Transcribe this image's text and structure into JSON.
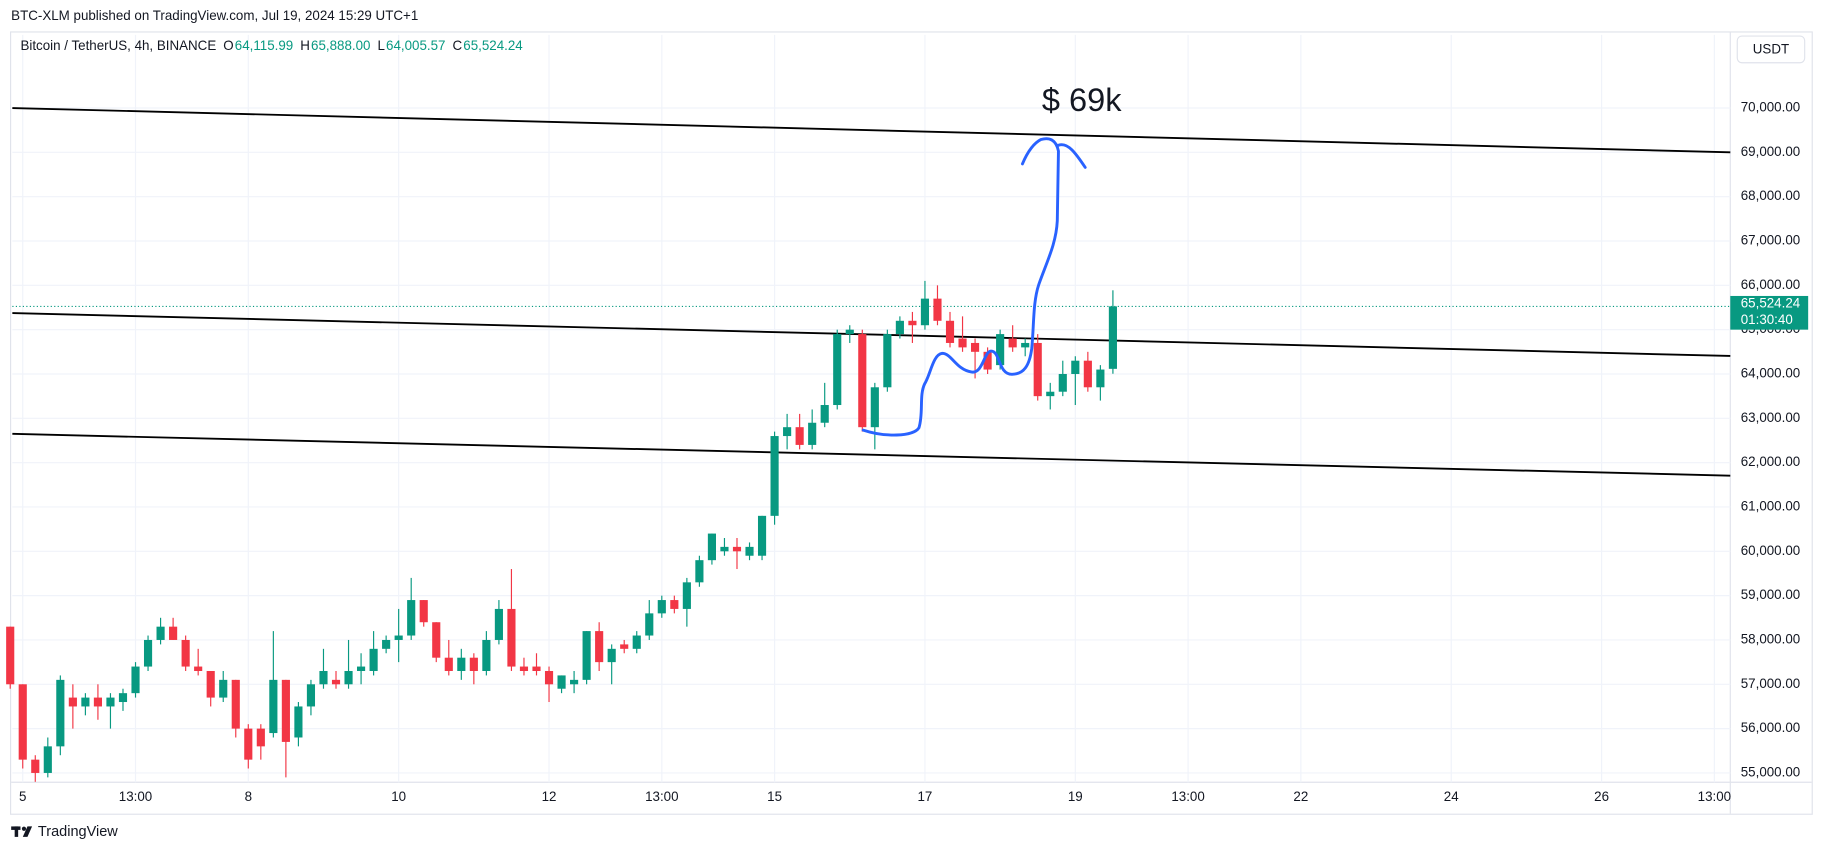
{
  "header": {
    "publisher": "BTC-XLM published on TradingView.com, Jul 19, 2024 15:29 UTC+1",
    "footer": "TradingView"
  },
  "chart_data": {
    "type": "candlestick",
    "title": "Bitcoin / TetherUS, 4h, BINANCE",
    "ohlc_legend": [
      {
        "label": "O",
        "value": "64,115.99"
      },
      {
        "label": "H",
        "value": "65,888.00"
      },
      {
        "label": "L",
        "value": "64,005.57"
      },
      {
        "label": "C",
        "value": "65,524.24"
      }
    ],
    "currency": "USDT",
    "x": [
      -1,
      0,
      1,
      2,
      3,
      4,
      5,
      6,
      7,
      8,
      9,
      10,
      11,
      12,
      13,
      14,
      15,
      16,
      17,
      18,
      19,
      20,
      21,
      22,
      23,
      24,
      25,
      26,
      27,
      28,
      29,
      30,
      31,
      32,
      33,
      34,
      35,
      36,
      37,
      38,
      39,
      40,
      41,
      42,
      43,
      44,
      45,
      46,
      47,
      48,
      49,
      50,
      51,
      52,
      53,
      54,
      55,
      56,
      57,
      58,
      59,
      60,
      61,
      62,
      63,
      64,
      65,
      66,
      67,
      68,
      69,
      70,
      71,
      72,
      73,
      74,
      75,
      76,
      77,
      78,
      79,
      80,
      81,
      82,
      83,
      84,
      85,
      86,
      87
    ],
    "open": [
      58300,
      57000,
      55300,
      55000,
      55600,
      56700,
      56500,
      56700,
      56500,
      56600,
      56800,
      57400,
      58000,
      58300,
      58000,
      57400,
      57300,
      56700,
      57100,
      56000,
      56000,
      55900,
      57100,
      55800,
      56500,
      57000,
      57100,
      57000,
      57300,
      57300,
      57800,
      58000,
      58100,
      58900,
      58400,
      57600,
      57300,
      57600,
      57300,
      58000,
      58700,
      57400,
      57400,
      57300,
      56900,
      57000,
      57100,
      58200,
      57500,
      57900,
      57800,
      58100,
      58600,
      58900,
      58700,
      59300,
      59800,
      60000,
      60100,
      59900,
      59900,
      60800,
      62600,
      62800,
      62400,
      62900,
      63300,
      64900,
      64900,
      62800,
      63700,
      64900,
      65200,
      65100,
      65700,
      65200,
      64800,
      64700,
      64500,
      64200,
      64800,
      64600,
      64700,
      63500,
      63600,
      64000,
      64300,
      63700,
      64115.99
    ],
    "high": [
      58300,
      57000,
      55400,
      55800,
      57200,
      57000,
      56800,
      57000,
      56800,
      56900,
      57500,
      58100,
      58500,
      58500,
      58100,
      57800,
      57300,
      57300,
      57100,
      56100,
      56100,
      58200,
      57100,
      56600,
      57100,
      57800,
      57300,
      58000,
      57700,
      58200,
      58100,
      58700,
      59400,
      58900,
      58400,
      58000,
      57800,
      57700,
      58200,
      58900,
      59600,
      57600,
      57700,
      57400,
      57200,
      57300,
      58200,
      58400,
      57900,
      58000,
      58200,
      58900,
      59000,
      59000,
      59400,
      59900,
      60400,
      60300,
      60300,
      60200,
      60800,
      62700,
      63100,
      63100,
      63200,
      63800,
      65000,
      65100,
      65000,
      63800,
      65000,
      65300,
      65400,
      66100,
      66000,
      65400,
      65300,
      64800,
      64600,
      65000,
      65100,
      64800,
      64900,
      63800,
      64300,
      64400,
      64500,
      64200,
      65888
    ],
    "low": [
      56900,
      55100,
      54800,
      54900,
      55400,
      56000,
      56300,
      56200,
      56000,
      56400,
      56700,
      57300,
      57900,
      58000,
      57300,
      57200,
      56500,
      56600,
      55800,
      55100,
      55300,
      55800,
      54900,
      55600,
      56300,
      56900,
      56900,
      56900,
      57000,
      57200,
      57700,
      57500,
      58000,
      58300,
      57500,
      57200,
      57100,
      57000,
      57200,
      57900,
      57300,
      57200,
      57200,
      56600,
      56800,
      56800,
      57000,
      57300,
      57000,
      57700,
      57700,
      58000,
      58500,
      58600,
      58300,
      59200,
      59700,
      59900,
      59600,
      59800,
      59800,
      60600,
      62300,
      62300,
      62300,
      62800,
      63200,
      64700,
      62700,
      62300,
      63600,
      64800,
      64700,
      65000,
      65100,
      64600,
      64500,
      63900,
      64000,
      64100,
      64500,
      64400,
      63400,
      63200,
      63500,
      63300,
      63600,
      63400,
      64005.57
    ],
    "close": [
      57000,
      55300,
      55000,
      55600,
      57100,
      56500,
      56700,
      56500,
      56700,
      56800,
      57400,
      58000,
      58300,
      58000,
      57400,
      57300,
      56700,
      57100,
      56000,
      55300,
      55600,
      57100,
      55700,
      56500,
      57000,
      57300,
      57000,
      57300,
      57400,
      57800,
      58000,
      58100,
      58900,
      58400,
      57600,
      57300,
      57600,
      57300,
      58000,
      58700,
      57400,
      57300,
      57300,
      57000,
      57200,
      57100,
      58200,
      57500,
      57800,
      57800,
      58100,
      58600,
      58900,
      58700,
      59300,
      59800,
      60400,
      60100,
      60000,
      60100,
      60800,
      62600,
      62800,
      62400,
      62900,
      63300,
      64900,
      65000,
      62800,
      63700,
      64900,
      65200,
      65100,
      65700,
      65200,
      64700,
      64600,
      64500,
      64100,
      64900,
      64600,
      64700,
      63500,
      63600,
      64000,
      64300,
      63700,
      64100,
      65524.24
    ],
    "up_color": "#089981",
    "down_color": "#f23645",
    "xlim": [
      -0.83,
      136.27
    ],
    "xticks": [
      {
        "value": 0,
        "label": "5"
      },
      {
        "value": 9,
        "label": "13:00"
      },
      {
        "value": 18,
        "label": "8"
      },
      {
        "value": 30,
        "label": "10"
      },
      {
        "value": 42,
        "label": "12"
      },
      {
        "value": 51,
        "label": "13:00"
      },
      {
        "value": 60,
        "label": "15"
      },
      {
        "value": 72,
        "label": "17"
      },
      {
        "value": 84,
        "label": "19"
      },
      {
        "value": 93,
        "label": "13:00"
      },
      {
        "value": 102,
        "label": "22"
      },
      {
        "value": 114,
        "label": "24"
      },
      {
        "value": 126,
        "label": "26"
      },
      {
        "value": 135,
        "label": "13:00"
      }
    ],
    "ylim": [
      54790,
      71650
    ],
    "yticks": [
      {
        "value": 55000,
        "label": "55,000.00"
      },
      {
        "value": 56000,
        "label": "56,000.00"
      },
      {
        "value": 57000,
        "label": "57,000.00"
      },
      {
        "value": 58000,
        "label": "58,000.00"
      },
      {
        "value": 59000,
        "label": "59,000.00"
      },
      {
        "value": 60000,
        "label": "60,000.00"
      },
      {
        "value": 61000,
        "label": "61,000.00"
      },
      {
        "value": 62000,
        "label": "62,000.00"
      },
      {
        "value": 63000,
        "label": "63,000.00"
      },
      {
        "value": 64000,
        "label": "64,000.00"
      },
      {
        "value": 65000,
        "label": "65,000.00"
      },
      {
        "value": 66000,
        "label": "66,000.00"
      },
      {
        "value": 67000,
        "label": "67,000.00"
      },
      {
        "value": 68000,
        "label": "68,000.00"
      },
      {
        "value": 69000,
        "label": "69,000.00"
      },
      {
        "value": 70000,
        "label": "70,000.00"
      }
    ],
    "grid": true,
    "last_price": {
      "value": 65524.24,
      "label": "65,524.24"
    },
    "countdown": "01:30:40",
    "trend_lines": [
      {
        "x": [
          -0.83,
          136.27
        ],
        "y": [
          70000,
          69000
        ]
      },
      {
        "x": [
          -0.83,
          136.27
        ],
        "y": [
          65375,
          64406
        ]
      },
      {
        "x": [
          -0.83,
          136.27
        ],
        "y": [
          62650,
          61707
        ]
      }
    ],
    "annotation": "$ 69k"
  }
}
